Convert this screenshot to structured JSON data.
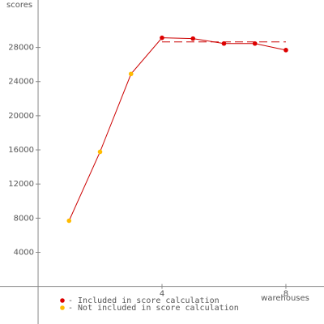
{
  "chart_data": {
    "type": "line",
    "y_label": "scores",
    "x_label": "warehouses",
    "x": [
      1,
      2,
      3,
      4,
      5,
      6,
      7,
      8
    ],
    "values": [
      7700,
      15770,
      24900,
      29130,
      29040,
      28460,
      28460,
      27690
    ],
    "included": [
      false,
      false,
      false,
      true,
      true,
      true,
      true,
      true
    ],
    "line_color": "#cc0000",
    "included_color": "#dd0000",
    "excluded_color": "#ffbb00",
    "reference_line": 28650,
    "reference_range": [
      4,
      8
    ],
    "xlim": [
      -1.23,
      9.23
    ],
    "ylim": [
      -4400,
      33560
    ],
    "xticks": [
      4,
      8
    ],
    "yticks": [
      4000,
      8000,
      12000,
      16000,
      20000,
      24000,
      28000
    ],
    "legend": [
      {
        "label": "- Included in score calculation",
        "color": "#dd0000"
      },
      {
        "label": "- Not included in score calculation",
        "color": "#ffbb00"
      }
    ]
  }
}
